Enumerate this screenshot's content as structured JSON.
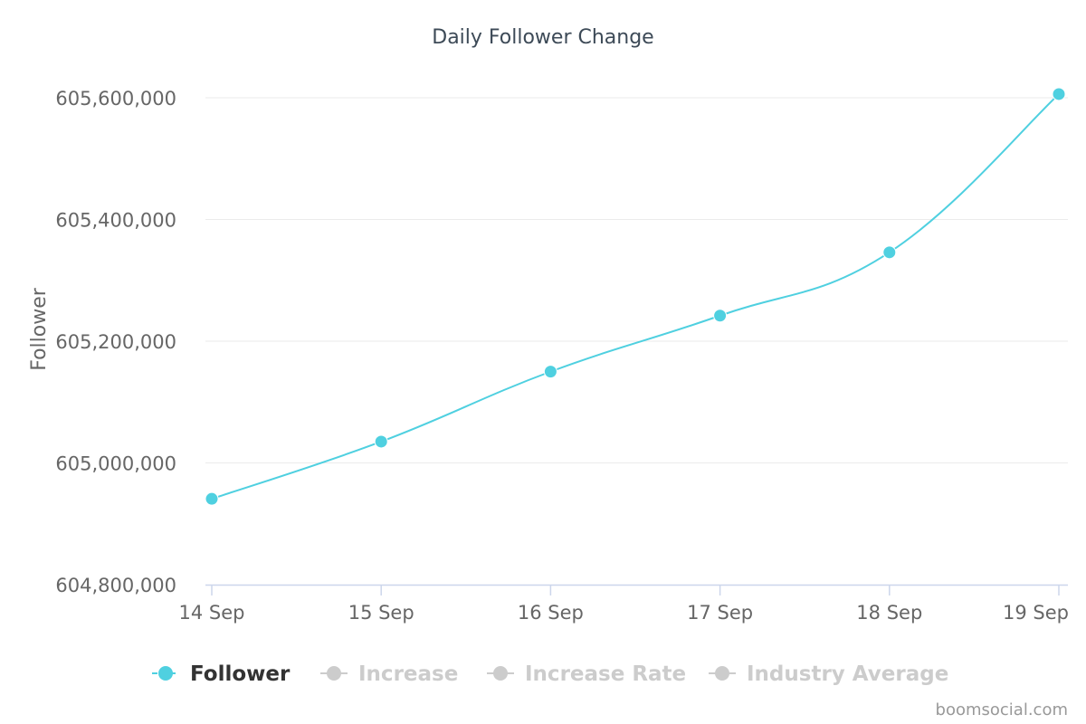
{
  "chart_data": {
    "type": "line",
    "title": "Daily Follower Change",
    "xlabel": "",
    "ylabel": "Follower",
    "categories": [
      "14 Sep",
      "15 Sep",
      "16 Sep",
      "17 Sep",
      "18 Sep",
      "19 Sep"
    ],
    "series": [
      {
        "name": "Follower",
        "color": "#4fd0e0",
        "values": [
          604941000,
          605035000,
          605150000,
          605242000,
          605346000,
          605606000
        ]
      }
    ],
    "ylim": [
      604800000,
      605600000
    ],
    "yticks": [
      604800000,
      605000000,
      605200000,
      605400000,
      605600000
    ],
    "ytick_labels": [
      "604,800,000",
      "605,000,000",
      "605,200,000",
      "605,400,000",
      "605,600,000"
    ],
    "grid": true
  },
  "legend": {
    "items": [
      {
        "label": "Follower",
        "active": true,
        "color": "#4fd0e0"
      },
      {
        "label": "Increase",
        "active": false,
        "color": "#cccccc"
      },
      {
        "label": "Increase Rate",
        "active": false,
        "color": "#cccccc"
      },
      {
        "label": "Industry Average",
        "active": false,
        "color": "#cccccc"
      }
    ]
  },
  "credit": "boomsocial.com"
}
